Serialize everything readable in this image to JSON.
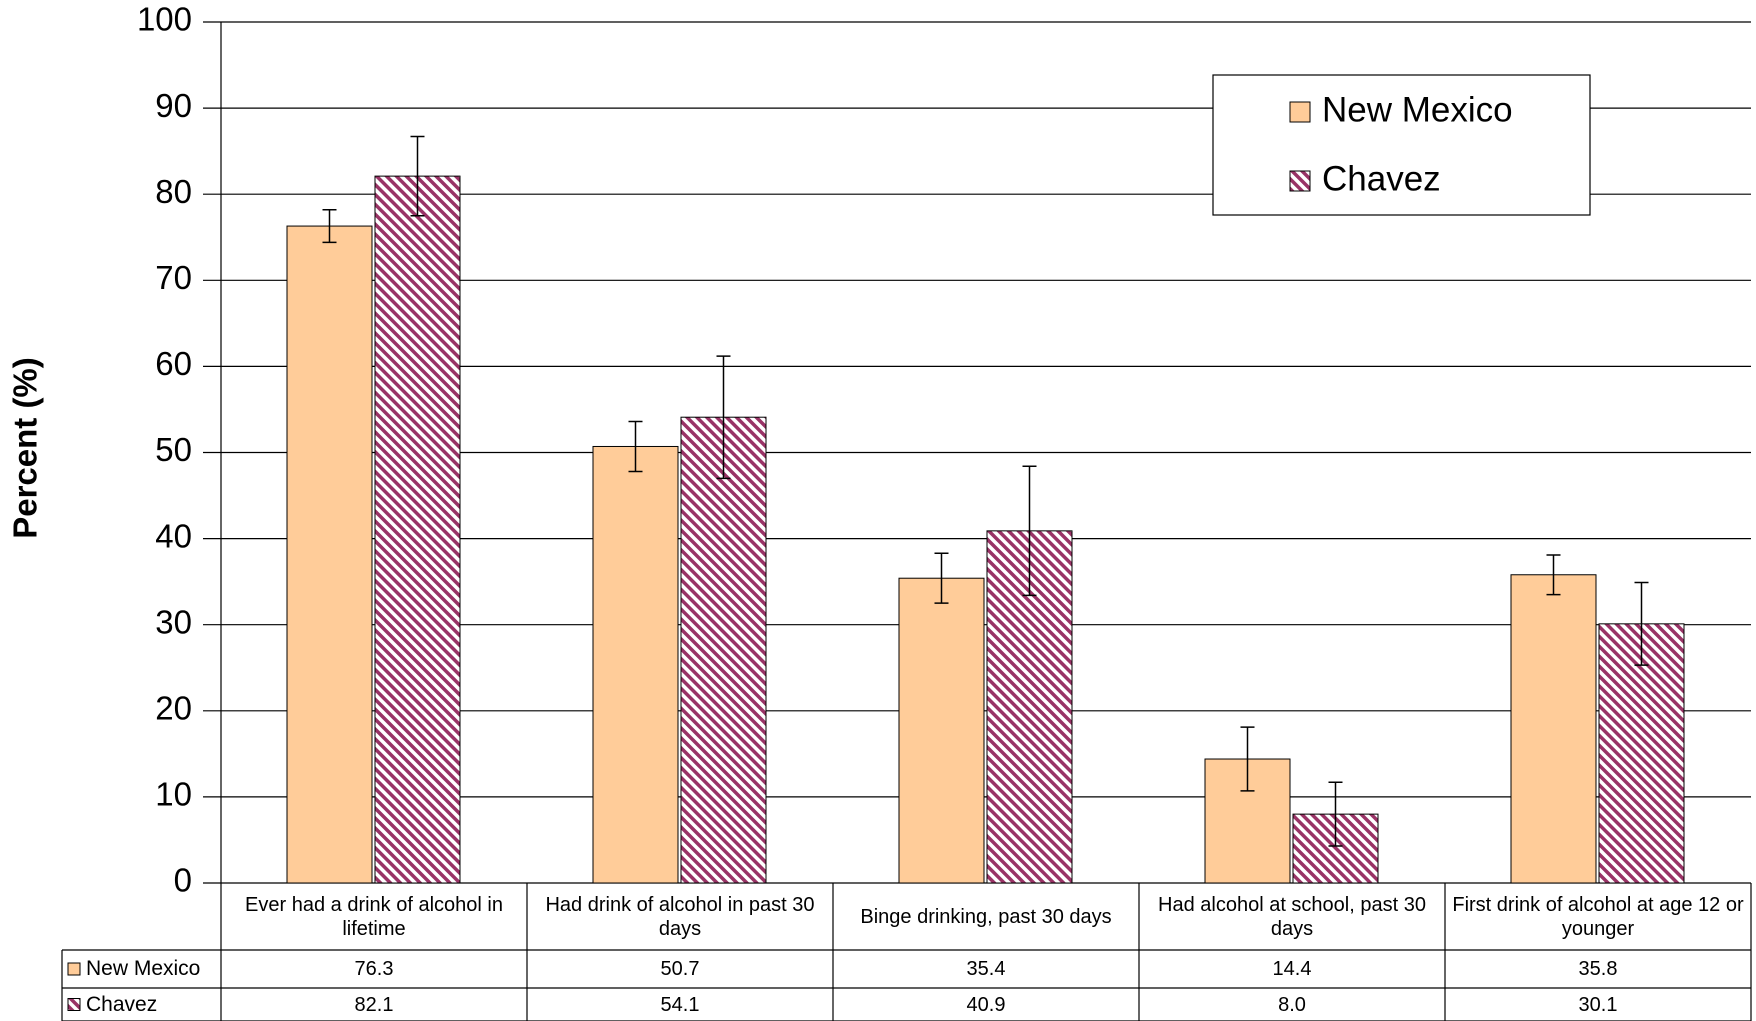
{
  "chart_data": {
    "type": "bar",
    "y_label": "Percent (%)",
    "categories": [
      "Ever had a drink of alcohol in lifetime",
      "Had drink of alcohol in past 30 days",
      "Binge drinking, past 30 days",
      "Had alcohol at school, past 30 days",
      "First drink of alcohol at age 12 or younger"
    ],
    "series": [
      {
        "name": "New Mexico",
        "color": "#ffcc99",
        "pattern": "solid",
        "values": [
          76.3,
          50.7,
          35.4,
          14.4,
          35.8
        ],
        "errors": [
          1.9,
          2.9,
          2.9,
          3.7,
          2.3
        ]
      },
      {
        "name": "Chavez",
        "color": "#993366",
        "pattern": "diagonal-hatch",
        "values": [
          82.1,
          54.1,
          40.9,
          8.0,
          30.1
        ],
        "value_labels": [
          "82.1",
          "54.1",
          "40.9",
          "8.0",
          "30.1"
        ],
        "errors": [
          4.6,
          7.1,
          7.5,
          3.7,
          4.8
        ]
      }
    ],
    "ylim": [
      0,
      100
    ],
    "yticks": [
      0,
      10,
      20,
      30,
      40,
      50,
      60,
      70,
      80,
      90,
      100
    ],
    "grid": true,
    "legend": "upper right"
  }
}
